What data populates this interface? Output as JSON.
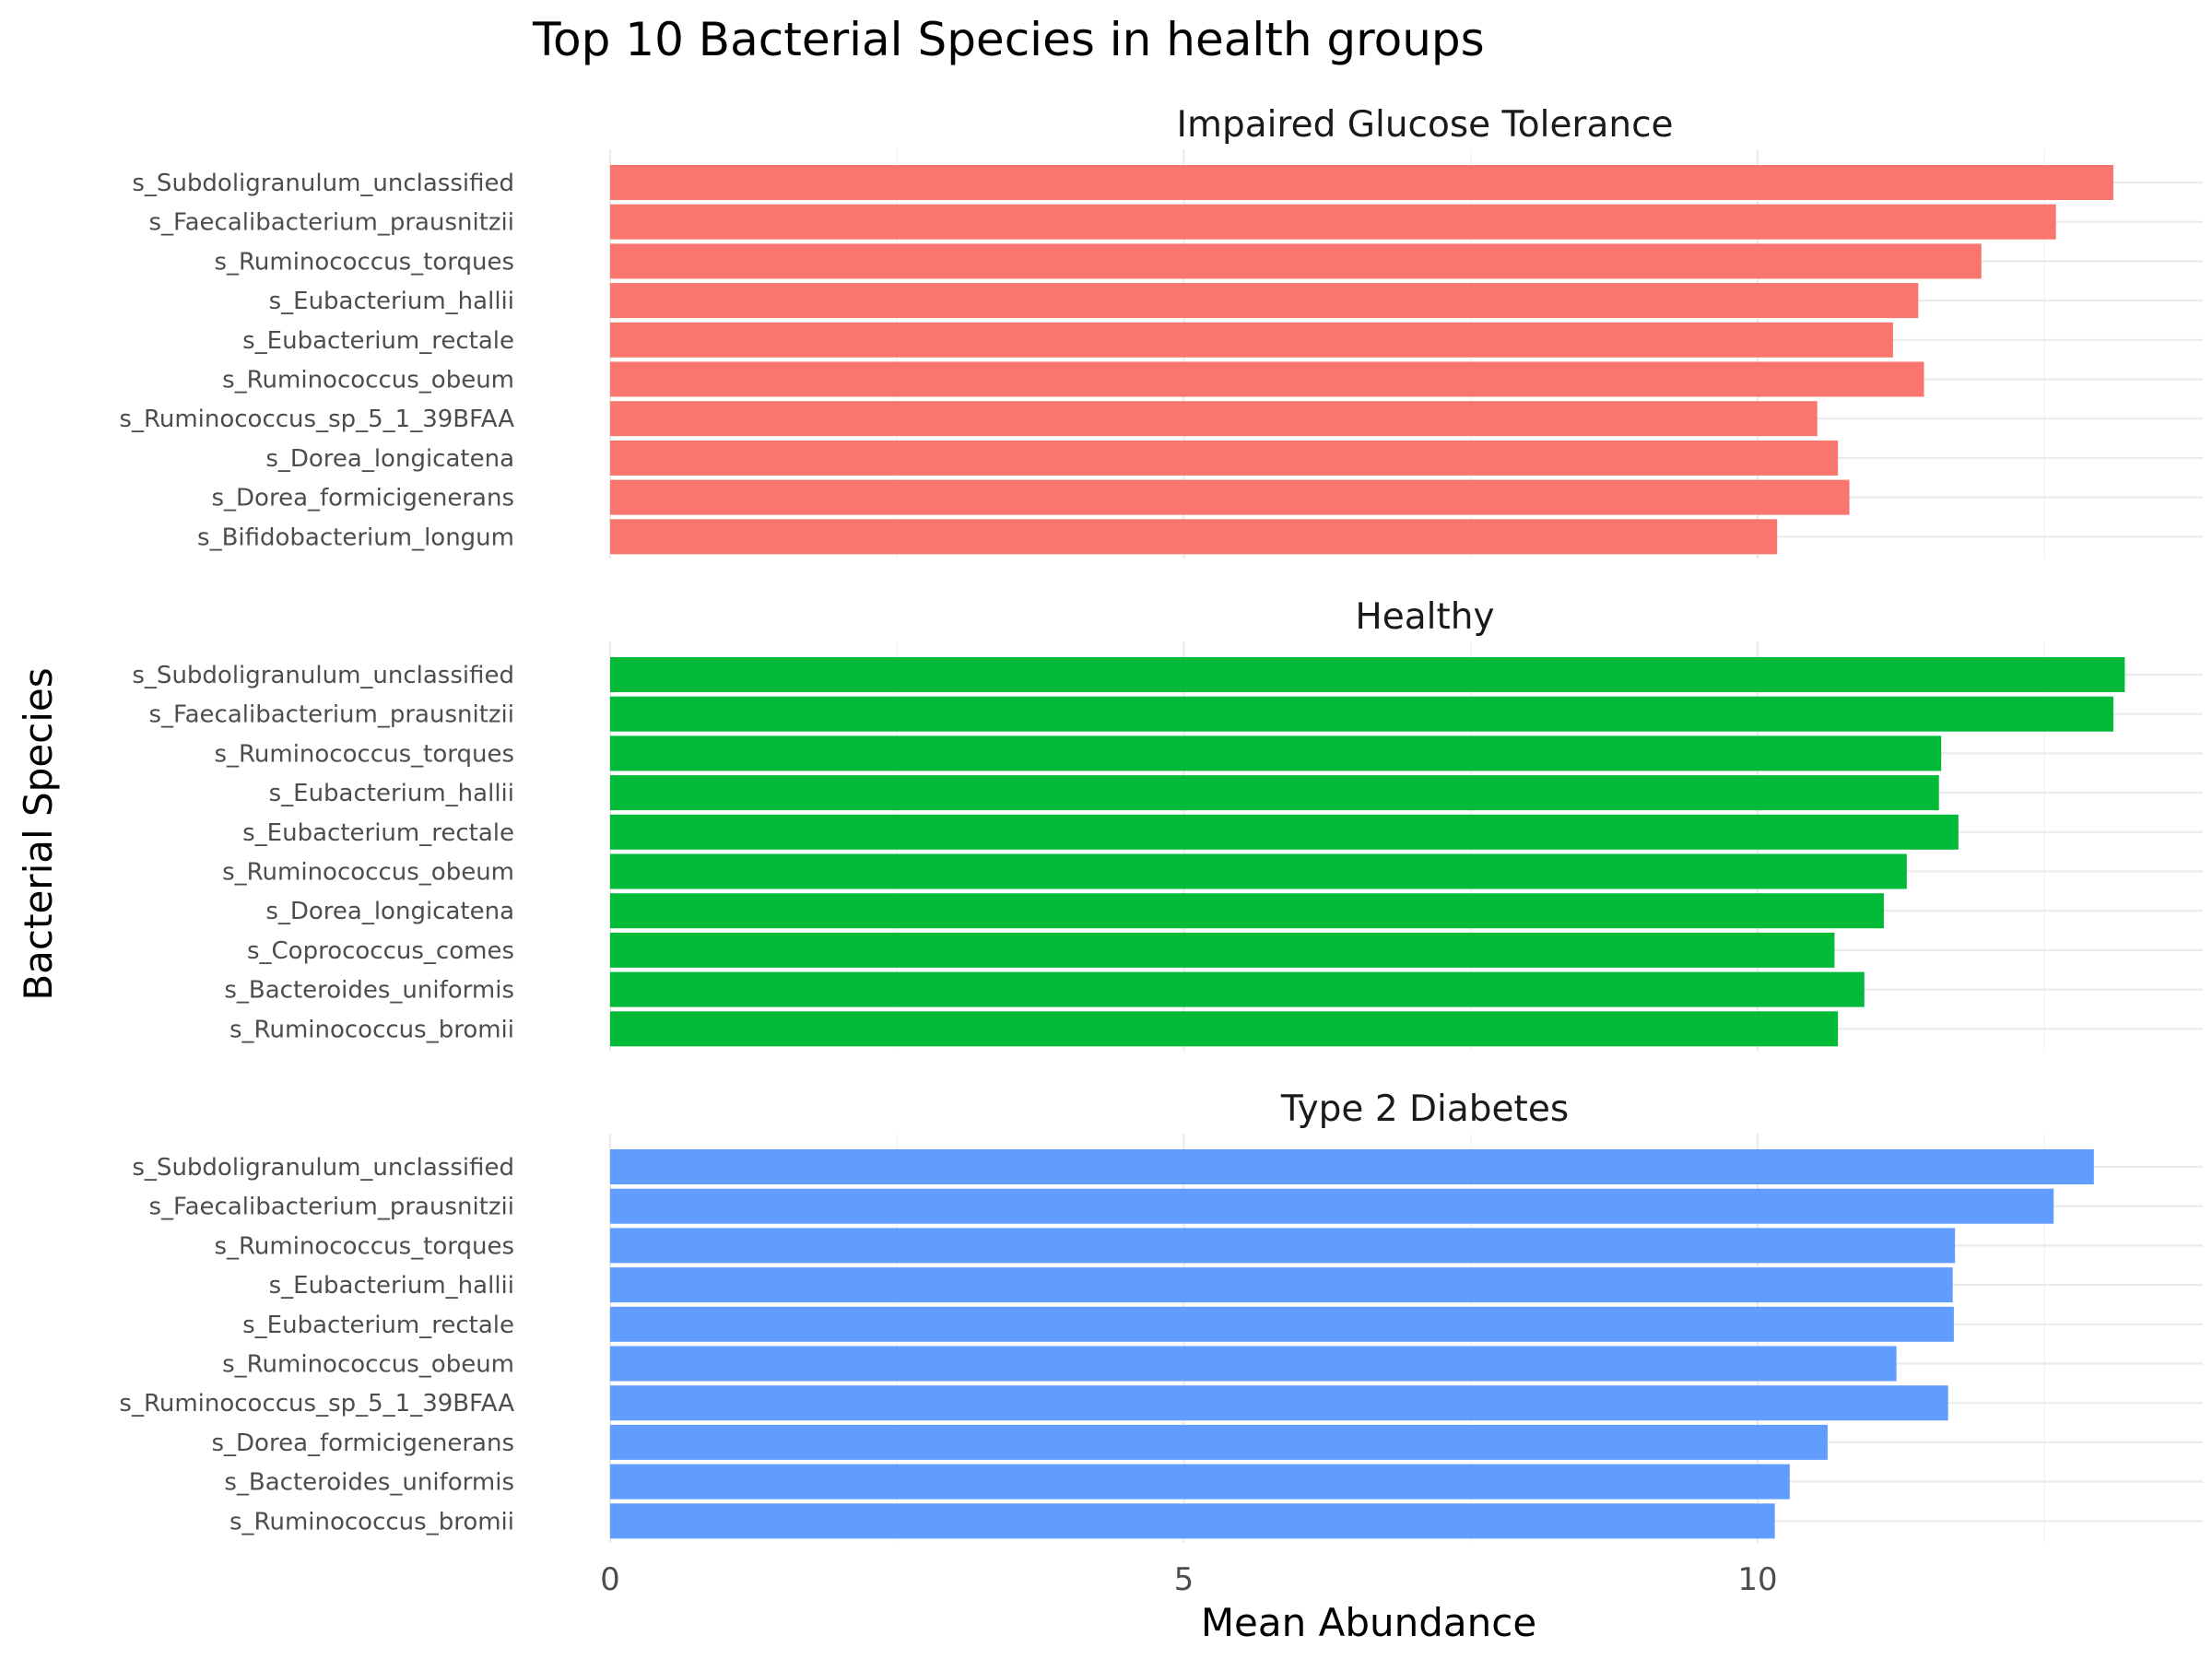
{
  "chart_data": {
    "type": "bar",
    "orientation": "horizontal",
    "title": "Top 10 Bacterial Species in health groups",
    "xlabel": "Mean Abundance",
    "ylabel": "Bacterial Species",
    "xlim": [
      0,
      13.5
    ],
    "x_ticks": [
      "0",
      "5",
      "10"
    ],
    "grid": true,
    "legend": "none",
    "panels": [
      {
        "name": "Impaired Glucose Tolerance",
        "color": "#F8766D",
        "categories": [
          "s_Subdoligranulum_unclassified",
          "s_Faecalibacterium_prausnitzii",
          "s_Ruminococcus_torques",
          "s_Eubacterium_hallii",
          "s_Eubacterium_rectale",
          "s_Ruminococcus_obeum",
          "s_Ruminococcus_sp_5_1_39BFAA",
          "s_Dorea_longicatena",
          "s_Dorea_formicigenerans",
          "s_Bifidobacterium_longum"
        ],
        "values": [
          13.1,
          12.6,
          11.95,
          11.4,
          11.18,
          11.45,
          10.52,
          10.7,
          10.8,
          10.17
        ]
      },
      {
        "name": "Healthy",
        "color": "#00BA38",
        "categories": [
          "s_Subdoligranulum_unclassified",
          "s_Faecalibacterium_prausnitzii",
          "s_Ruminococcus_torques",
          "s_Eubacterium_hallii",
          "s_Eubacterium_rectale",
          "s_Ruminococcus_obeum",
          "s_Dorea_longicatena",
          "s_Coprococcus_comes",
          "s_Bacteroides_uniformis",
          "s_Ruminococcus_bromii"
        ],
        "values": [
          13.2,
          13.1,
          11.6,
          11.58,
          11.75,
          11.3,
          11.1,
          10.67,
          10.93,
          10.7
        ]
      },
      {
        "name": "Type 2 Diabetes",
        "color": "#619CFF",
        "categories": [
          "s_Subdoligranulum_unclassified",
          "s_Faecalibacterium_prausnitzii",
          "s_Ruminococcus_torques",
          "s_Eubacterium_hallii",
          "s_Eubacterium_rectale",
          "s_Ruminococcus_obeum",
          "s_Ruminococcus_sp_5_1_39BFAA",
          "s_Dorea_formicigenerans",
          "s_Bacteroides_uniformis",
          "s_Ruminococcus_bromii"
        ],
        "values": [
          12.93,
          12.58,
          11.72,
          11.7,
          11.71,
          11.21,
          11.66,
          10.61,
          10.28,
          10.15
        ]
      }
    ]
  }
}
